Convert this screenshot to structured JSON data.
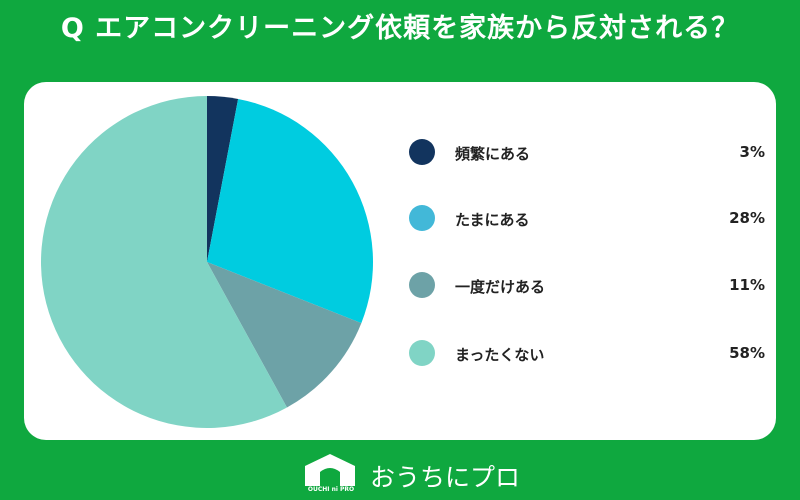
{
  "title": "Q エアコンクリーニング依頼を家族から反対される？",
  "chart_data": {
    "type": "pie",
    "slices": [
      {
        "label": "頻繁にある",
        "value": 3,
        "value_label": "3%",
        "color": "#12345e"
      },
      {
        "label": "たまにある",
        "value": 28,
        "value_label": "28%",
        "color": "#00cce0"
      },
      {
        "label": "一度だけある",
        "value": 11,
        "value_label": "11%",
        "color": "#6da2a7"
      },
      {
        "label": "まったくない",
        "value": 58,
        "value_label": "58%",
        "color": "#80d4c5"
      }
    ],
    "legend_colors": [
      "#12345e",
      "#42b8d8",
      "#6da2a7",
      "#80d4c5"
    ],
    "legend_placement": "right"
  },
  "logo": {
    "sub": "OUCHI ni PRO",
    "text": "おうちにプロ"
  },
  "colors": {
    "background": "#0fa83f",
    "card": "#ffffff"
  }
}
